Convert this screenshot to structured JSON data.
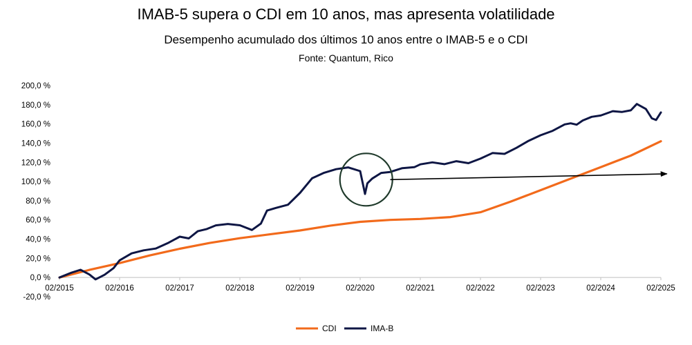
{
  "chart_data": {
    "type": "line",
    "title": "IMAB-5 supera o CDI em 10 anos, mas apresenta volatilidade",
    "subtitle": "Desempenho acumulado dos últimos 10 anos entre o IMAB-5 e o CDI",
    "source": "Fonte: Quantum, Rico",
    "xlabel": "",
    "ylabel": "",
    "ylim": [
      -20,
      200
    ],
    "x_tick_labels": [
      "02/2015",
      "02/2016",
      "02/2017",
      "02/2018",
      "02/2019",
      "02/2020",
      "02/2021",
      "02/2022",
      "02/2023",
      "02/2024",
      "02/2025"
    ],
    "y_tick_labels": [
      "-20,0 %",
      "0,0 %",
      "20,0 %",
      "40,0 %",
      "60,0 %",
      "80,0 %",
      "100,0 %",
      "120,0 %",
      "140,0 %",
      "160,0 %",
      "180,0 %",
      "200,0 %"
    ],
    "y_tick_values": [
      -20,
      0,
      20,
      40,
      60,
      80,
      100,
      120,
      140,
      160,
      180,
      200
    ],
    "legend_position": "bottom",
    "series": [
      {
        "name": "CDI",
        "color": "#F26A1B",
        "x": [
          2015.0,
          2015.5,
          2016.0,
          2016.5,
          2017.0,
          2017.5,
          2018.0,
          2018.5,
          2019.0,
          2019.5,
          2020.0,
          2020.5,
          2021.0,
          2021.5,
          2022.0,
          2022.5,
          2023.0,
          2023.5,
          2024.0,
          2024.5,
          2025.0
        ],
        "y": [
          0,
          8,
          15,
          23,
          30,
          36,
          41,
          45,
          49,
          54,
          58,
          60,
          61,
          63,
          68,
          79,
          91,
          103,
          115,
          127,
          142
        ]
      },
      {
        "name": "IMA-B",
        "color": "#0E1644",
        "x": [
          2015.0,
          2015.2,
          2015.35,
          2015.5,
          2015.6,
          2015.75,
          2015.9,
          2016.0,
          2016.2,
          2016.4,
          2016.6,
          2016.8,
          2017.0,
          2017.15,
          2017.3,
          2017.45,
          2017.6,
          2017.8,
          2018.0,
          2018.2,
          2018.35,
          2018.45,
          2018.6,
          2018.8,
          2019.0,
          2019.2,
          2019.4,
          2019.6,
          2019.8,
          2020.0,
          2020.08,
          2020.12,
          2020.2,
          2020.35,
          2020.5,
          2020.7,
          2020.9,
          2021.0,
          2021.2,
          2021.4,
          2021.6,
          2021.8,
          2022.0,
          2022.2,
          2022.4,
          2022.6,
          2022.8,
          2023.0,
          2023.2,
          2023.4,
          2023.5,
          2023.6,
          2023.7,
          2023.85,
          2024.0,
          2024.2,
          2024.35,
          2024.5,
          2024.6,
          2024.75,
          2024.85,
          2024.92,
          2025.0
        ],
        "y": [
          0,
          4,
          7,
          3,
          -1,
          4,
          10,
          17,
          24,
          28,
          31,
          37,
          43,
          40,
          47,
          50,
          55,
          57,
          55,
          49,
          55,
          69,
          73,
          77,
          89,
          103,
          108,
          112,
          115,
          112,
          88,
          98,
          102,
          108,
          110,
          115,
          116,
          118,
          119,
          117,
          121,
          120,
          125,
          130,
          128,
          134,
          142,
          149,
          154,
          160,
          160,
          158,
          163,
          168,
          170,
          174,
          172,
          173,
          180,
          176,
          167,
          165,
          172
        ]
      }
    ],
    "annotations": [
      {
        "type": "circle",
        "label": "",
        "center_x": 2020.1,
        "center_y": 102
      },
      {
        "type": "arrow",
        "label": "",
        "from": [
          2020.5,
          102
        ],
        "to": [
          2025.1,
          108
        ]
      }
    ]
  }
}
